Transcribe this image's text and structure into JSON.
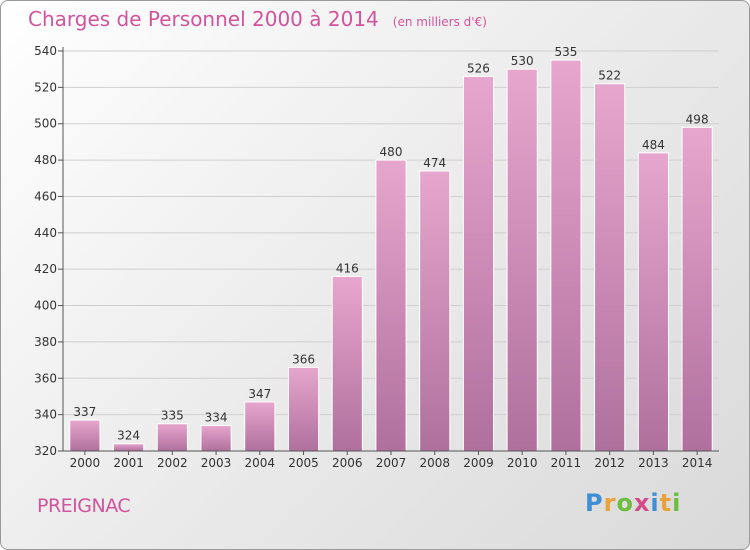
{
  "title": "Charges de Personnel 2000 à 2014",
  "subtitle": "(en milliers d'€)",
  "place": "PREIGNAC",
  "brand": {
    "letters": [
      "P",
      "r",
      "o",
      "x",
      "i",
      "t",
      "i"
    ],
    "colors": [
      "#3d8fd8",
      "#e8a33a",
      "#6cbf3c",
      "#d64a8a",
      "#3d8fd8",
      "#e8a33a",
      "#6cbf3c"
    ]
  },
  "colors": {
    "bar_top": "#e7a6cd",
    "bar_bottom": "#b0709e",
    "accent": "#d2549c"
  },
  "chart_data": {
    "type": "bar",
    "categories": [
      "2000",
      "2001",
      "2002",
      "2003",
      "2004",
      "2005",
      "2006",
      "2007",
      "2008",
      "2009",
      "2010",
      "2011",
      "2012",
      "2013",
      "2014"
    ],
    "values": [
      337,
      324,
      335,
      334,
      347,
      366,
      416,
      480,
      474,
      526,
      530,
      535,
      522,
      484,
      498
    ],
    "title": "Charges de Personnel 2000 à 2014",
    "ylim": [
      320,
      540
    ],
    "yticks": [
      320,
      340,
      360,
      380,
      400,
      420,
      440,
      460,
      480,
      500,
      520,
      540
    ],
    "grid": true,
    "data_labels": true
  }
}
